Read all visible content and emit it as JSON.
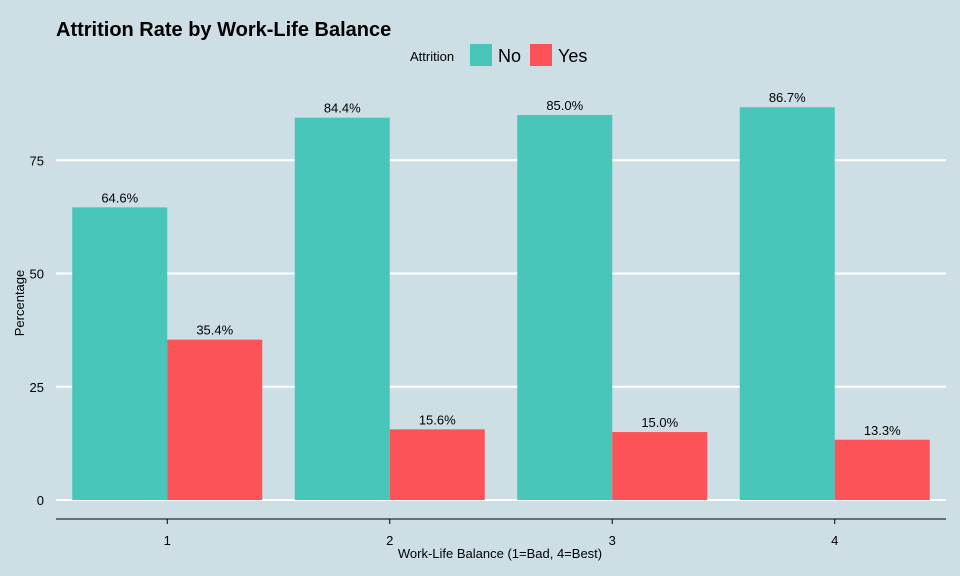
{
  "chart_data": {
    "type": "bar",
    "title": "Attrition Rate by Work-Life Balance",
    "xlabel": "Work-Life Balance (1=Bad, 4=Best)",
    "ylabel": "Percentage",
    "categories": [
      "1",
      "2",
      "3",
      "4"
    ],
    "series": [
      {
        "name": "No",
        "values": [
          64.6,
          84.4,
          85.0,
          86.7
        ],
        "labels": [
          "64.6%",
          "84.4%",
          "85.0%",
          "86.7%"
        ],
        "color": "#48c6b9"
      },
      {
        "name": "Yes",
        "values": [
          35.4,
          15.6,
          15.0,
          13.3
        ],
        "labels": [
          "35.4%",
          "15.6%",
          "15.0%",
          "13.3%"
        ],
        "color": "#fc5359"
      }
    ],
    "legend_title": "Attrition",
    "legend_position": "top-center",
    "yticks": [
      0,
      25,
      50,
      75
    ],
    "grid": "horizontal",
    "background": "#cddfe5"
  }
}
